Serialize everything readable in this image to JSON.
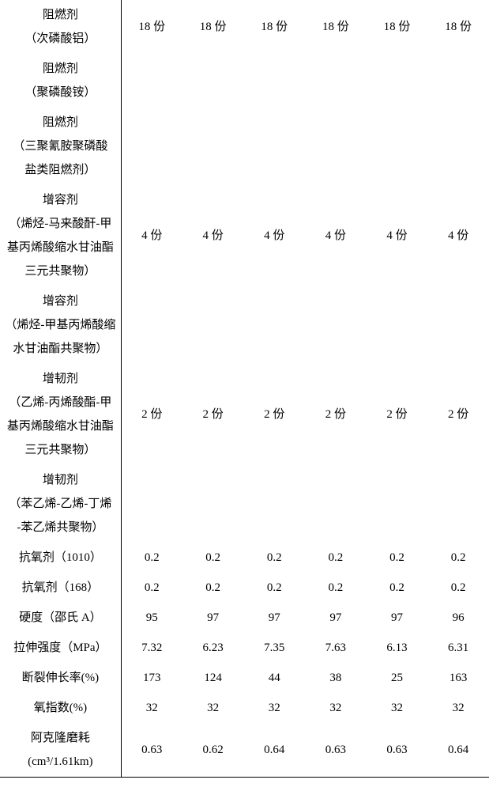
{
  "rows": [
    {
      "label": [
        "阻燃剂",
        "（次磷酸铝）"
      ],
      "vals": [
        "18 份",
        "18 份",
        "18 份",
        "18 份",
        "18 份",
        "18 份"
      ]
    },
    {
      "label": [
        "阻燃剂",
        "（聚磷酸铵）"
      ],
      "vals": [
        "",
        "",
        "",
        "",
        "",
        ""
      ]
    },
    {
      "label": [
        "阻燃剂",
        "（三聚氰胺聚磷酸",
        "盐类阻燃剂）"
      ],
      "vals": [
        "",
        "",
        "",
        "",
        "",
        ""
      ]
    },
    {
      "label": [
        "增容剂",
        "（烯烃-马来酸酐-甲",
        "基丙烯酸缩水甘油酯",
        "三元共聚物）"
      ],
      "vals": [
        "4 份",
        "4 份",
        "4 份",
        "4 份",
        "4 份",
        "4 份"
      ]
    },
    {
      "label": [
        "增容剂",
        "（烯烃-甲基丙烯酸缩",
        "水甘油酯共聚物）"
      ],
      "vals": [
        "",
        "",
        "",
        "",
        "",
        ""
      ]
    },
    {
      "label": [
        "增韧剂",
        "（乙烯-丙烯酸酯-甲",
        "基丙烯酸缩水甘油酯",
        "三元共聚物）"
      ],
      "vals": [
        "2 份",
        "2 份",
        "2 份",
        "2 份",
        "2 份",
        "2 份"
      ]
    },
    {
      "label": [
        "增韧剂",
        "（苯乙烯-乙烯-丁烯",
        "-苯乙烯共聚物）"
      ],
      "vals": [
        "",
        "",
        "",
        "",
        "",
        ""
      ]
    },
    {
      "label": [
        "抗氧剂（1010）"
      ],
      "vals": [
        "0.2",
        "0.2",
        "0.2",
        "0.2",
        "0.2",
        "0.2"
      ]
    },
    {
      "label": [
        "抗氧剂（168）"
      ],
      "vals": [
        "0.2",
        "0.2",
        "0.2",
        "0.2",
        "0.2",
        "0.2"
      ]
    },
    {
      "label": [
        "硬度（邵氏 A）"
      ],
      "vals": [
        "95",
        "97",
        "97",
        "97",
        "97",
        "96"
      ]
    },
    {
      "label": [
        "拉伸强度（MPa）"
      ],
      "vals": [
        "7.32",
        "6.23",
        "7.35",
        "7.63",
        "6.13",
        "6.31"
      ]
    },
    {
      "label": [
        "断裂伸长率(%)"
      ],
      "vals": [
        "173",
        "124",
        "44",
        "38",
        "25",
        "163"
      ]
    },
    {
      "label": [
        "氧指数(%)"
      ],
      "vals": [
        "32",
        "32",
        "32",
        "32",
        "32",
        "32"
      ]
    },
    {
      "label": [
        "阿克隆磨耗",
        "(cm³/1.61km)"
      ],
      "vals": [
        "0.63",
        "0.62",
        "0.64",
        "0.63",
        "0.63",
        "0.64"
      ],
      "last": true
    }
  ]
}
